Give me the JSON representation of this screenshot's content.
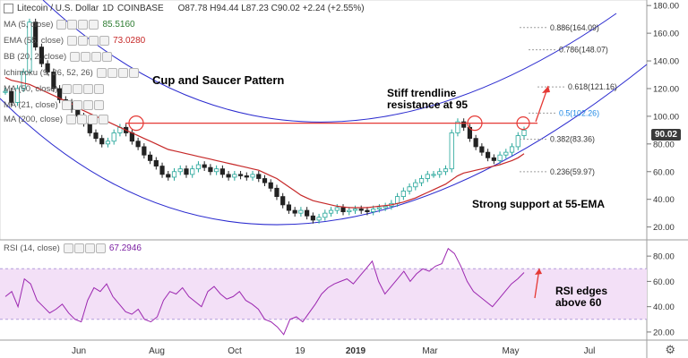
{
  "header": {
    "symbol": "Litecoin / U.S. Dollar",
    "interval": "1D",
    "exchange": "COINBASE",
    "ohlc_text": "O87.78  H94.44  L87.23  C90.02  +2.24 (+2.55%)"
  },
  "indicators": [
    {
      "label": "MA (5, close)",
      "value": "85.5160",
      "color": "#2e7d32"
    },
    {
      "label": "EMA (55, close)",
      "value": "73.0280",
      "color": "#c62828"
    },
    {
      "label": "BB (20, 2, close)",
      "value": "",
      "color": "#444444"
    },
    {
      "label": "Ichimoku (9, 26, 52, 26)",
      "value": "",
      "color": "#444444"
    },
    {
      "label": "MA (50, close)",
      "value": "",
      "color": "#444444"
    },
    {
      "label": "MA (21, close)",
      "value": "",
      "color": "#444444"
    },
    {
      "label": "MA (200, close)",
      "value": "",
      "color": "#444444"
    }
  ],
  "rsi_legend": {
    "label": "RSI (14, close)",
    "value": "67.2946",
    "color": "#7b1fa2"
  },
  "annotations": {
    "pattern": "Cup and Saucer Pattern",
    "resistance": "Stiff trendline\nresistance at 95",
    "support": "Strong support at 55-EMA",
    "rsi_note": "RSI edges\nabove 60"
  },
  "current_price": "90.02",
  "colors": {
    "candle_up": "#26a69a",
    "candle_down": "#222222",
    "ema": "#c62828",
    "channel": "#2b2bcf",
    "resistance": "#e53935",
    "rsi_line": "#9c27b0",
    "rsi_band": "#f3e0f7",
    "arrow": "#e53935"
  },
  "chart_data": {
    "type": "line",
    "title": "Litecoin / U.S. Dollar, 1D, COINBASE",
    "x_tick_labels": [
      "Jun",
      "Aug",
      "Oct",
      "19",
      "2019",
      "Mar",
      "May",
      "Jul"
    ],
    "y_tick_labels": [
      "180.00",
      "160.00",
      "140.00",
      "120.00",
      "100.00",
      "80.00",
      "60.00",
      "40.00",
      "20.00"
    ],
    "ylim": [
      12,
      184
    ],
    "y_ticks": [
      180,
      160,
      140,
      120,
      100,
      80,
      60,
      40,
      20
    ],
    "price_series": {
      "name": "LTCUSD",
      "values": [
        118,
        110,
        120,
        132,
        168,
        150,
        138,
        132,
        120,
        112,
        110,
        105,
        100,
        95,
        88,
        84,
        80,
        82,
        88,
        92,
        88,
        82,
        78,
        72,
        68,
        64,
        58,
        56,
        60,
        62,
        58,
        62,
        65,
        63,
        60,
        62,
        58,
        56,
        58,
        57,
        56,
        58,
        55,
        52,
        48,
        42,
        36,
        32,
        30,
        32,
        28,
        25,
        27,
        30,
        32,
        34,
        31,
        32,
        33,
        32,
        31,
        33,
        34,
        35,
        37,
        42,
        46,
        49,
        52,
        55,
        58,
        58,
        60,
        62,
        88,
        96,
        92,
        84,
        78,
        74,
        70,
        68,
        72,
        74,
        78,
        86,
        90
      ]
    },
    "ema55": {
      "name": "EMA (55, close)",
      "values": [
        128,
        126,
        125,
        124,
        123,
        121,
        119,
        117,
        115,
        113,
        111,
        109,
        106,
        104,
        102,
        100,
        98,
        96,
        94,
        92,
        90,
        88,
        86,
        84,
        82,
        80,
        78,
        76,
        75,
        74,
        73,
        72,
        71,
        70,
        69,
        68,
        67,
        66,
        65,
        64,
        63,
        62,
        61,
        59,
        57,
        55,
        52,
        49,
        46,
        43,
        41,
        39,
        38,
        37,
        36,
        35,
        34.5,
        34,
        34,
        34,
        34,
        34.5,
        35,
        35.5,
        36,
        37,
        38,
        39.5,
        41,
        43,
        45,
        47,
        49,
        51,
        54,
        57,
        59,
        60,
        61,
        62,
        63,
        64,
        65,
        66.5,
        68,
        70,
        73
      ]
    },
    "resistance_level": 95,
    "fib_levels": [
      {
        "label": "0.886(164.09)",
        "value": 164.09
      },
      {
        "label": "0.786(148.07)",
        "value": 148.07
      },
      {
        "label": "0.618(121.16)",
        "value": 121.16
      },
      {
        "label": "0.5(102.26)",
        "value": 102.26
      },
      {
        "label": "0.382(83.36)",
        "value": 83.36
      },
      {
        "label": "0.236(59.97)",
        "value": 59.97
      }
    ],
    "rsi": {
      "name": "RSI (14, close)",
      "y_tick_labels": [
        "80.00",
        "60.00",
        "40.00",
        "20.00"
      ],
      "y_ticks": [
        80,
        60,
        40,
        20
      ],
      "ylim": [
        15,
        90
      ],
      "band": [
        30,
        70
      ],
      "values": [
        48,
        52,
        40,
        62,
        58,
        45,
        40,
        35,
        38,
        42,
        35,
        30,
        28,
        45,
        55,
        52,
        58,
        48,
        42,
        36,
        34,
        38,
        30,
        28,
        32,
        45,
        52,
        50,
        55,
        48,
        44,
        40,
        52,
        56,
        50,
        46,
        48,
        52,
        45,
        42,
        38,
        30,
        28,
        24,
        18,
        30,
        32,
        28,
        35,
        42,
        50,
        55,
        58,
        60,
        62,
        58,
        64,
        70,
        76,
        60,
        50,
        56,
        62,
        68,
        60,
        66,
        70,
        68,
        72,
        74,
        86,
        82,
        72,
        60,
        52,
        48,
        44,
        40,
        46,
        52,
        58,
        62,
        67
      ]
    }
  }
}
